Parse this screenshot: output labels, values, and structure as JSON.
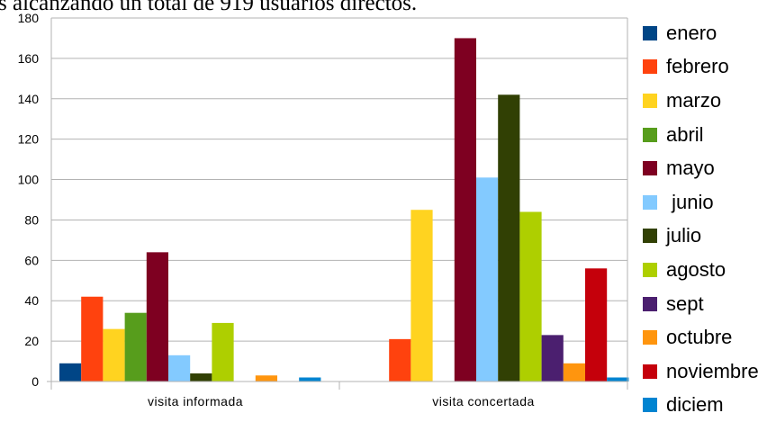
{
  "header_text": "s alcanzando un total de 919 usuarios directos.",
  "chart_data": {
    "type": "bar",
    "title": "",
    "xlabel": "",
    "ylabel": "",
    "ylim": [
      0,
      180
    ],
    "yticks": [
      0,
      20,
      40,
      60,
      80,
      100,
      120,
      140,
      160,
      180
    ],
    "grid": true,
    "legend_position": "right",
    "categories": [
      "visita informada",
      "visita concertada"
    ],
    "series": [
      {
        "name": "enero",
        "color": "#004586",
        "values": [
          9,
          0
        ]
      },
      {
        "name": "febrero",
        "color": "#ff420e",
        "values": [
          42,
          21
        ]
      },
      {
        "name": "marzo",
        "color": "#ffd320",
        "values": [
          26,
          85
        ]
      },
      {
        "name": "abril",
        "color": "#579d1c",
        "values": [
          34,
          0
        ]
      },
      {
        "name": "mayo",
        "color": "#7e0021",
        "values": [
          64,
          170
        ]
      },
      {
        "name": " junio",
        "color": "#83caff",
        "values": [
          13,
          101
        ]
      },
      {
        "name": "julio",
        "color": "#314004",
        "values": [
          4,
          142
        ]
      },
      {
        "name": "agosto",
        "color": "#aecf00",
        "values": [
          29,
          84
        ]
      },
      {
        "name": "sept",
        "color": "#4b1f6f",
        "values": [
          0,
          23
        ]
      },
      {
        "name": "octubre",
        "color": "#ff950e",
        "values": [
          3,
          9
        ]
      },
      {
        "name": "noviembre",
        "color": "#c5000b",
        "values": [
          0,
          56
        ]
      },
      {
        "name": "diciem",
        "color": "#0084d1",
        "values": [
          2,
          2
        ]
      }
    ]
  }
}
